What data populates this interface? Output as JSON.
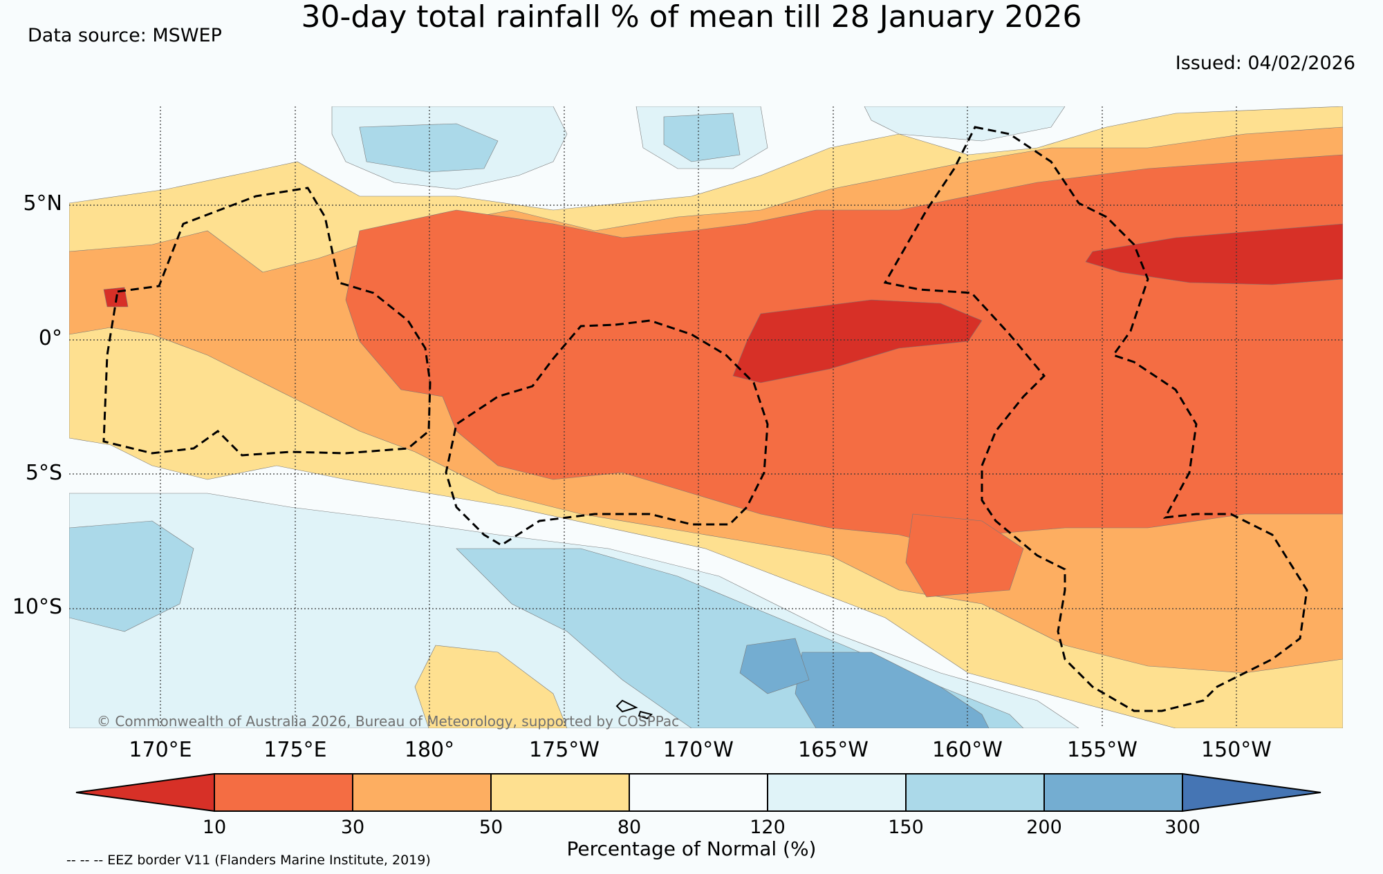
{
  "title": "30-day total rainfall % of mean till 28 January 2026",
  "data_source": "Data source: MSWEP",
  "issued": "Issued: 04/02/2026",
  "copyright": "© Commonwealth of Australia 2026, Bureau of Meteorology, supported by COSPPac",
  "eez_note": "-- -- -- EEZ border V11 (Flanders Marine Institute, 2019)",
  "lat_labels": [
    "5°N",
    "0°",
    "5°S",
    "10°S"
  ],
  "lon_labels": [
    "170°E",
    "175°E",
    "180°",
    "175°W",
    "170°W",
    "165°W",
    "160°W",
    "155°W",
    "150°W"
  ],
  "colorbar": {
    "title": "Percentage of Normal (%)",
    "ticks": [
      "10",
      "30",
      "50",
      "80",
      "120",
      "150",
      "200",
      "300"
    ],
    "colors": {
      "lt10": "#d73027",
      "b10_30": "#f46d43",
      "b30_50": "#fdae61",
      "b50_80": "#fee090",
      "b80_120": "#f8fcfd",
      "b120_150": "#e0f3f8",
      "b150_200": "#abd9e9",
      "b200_300": "#74add1",
      "gt300": "#4575b4"
    }
  }
}
